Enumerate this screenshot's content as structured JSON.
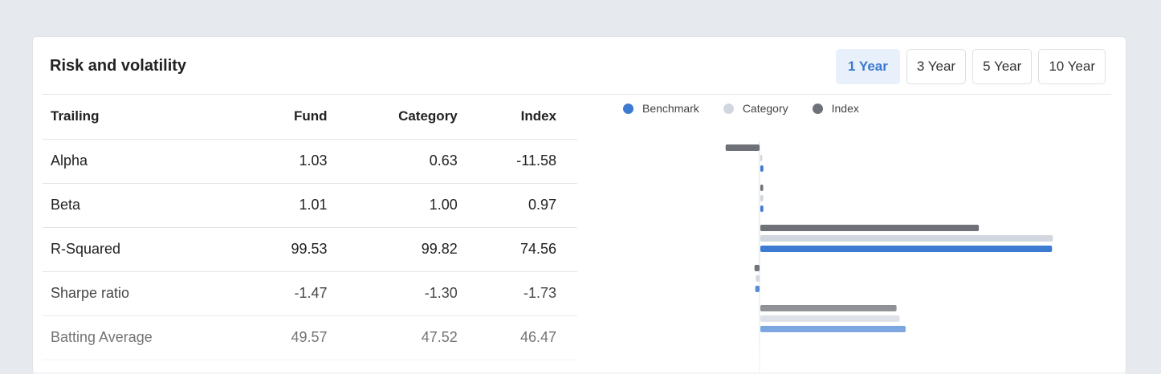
{
  "title": "Risk and volatility",
  "periods": [
    {
      "label": "1 Year",
      "active": true
    },
    {
      "label": "3 Year",
      "active": false
    },
    {
      "label": "5 Year",
      "active": false
    },
    {
      "label": "10 Year",
      "active": false
    }
  ],
  "table": {
    "headers": [
      "Trailing",
      "Fund",
      "Category",
      "Index"
    ],
    "rows": [
      [
        "Alpha",
        "1.03",
        "0.63",
        "-11.58"
      ],
      [
        "Beta",
        "1.01",
        "1.00",
        "0.97"
      ],
      [
        "R-Squared",
        "99.53",
        "99.82",
        "74.56"
      ],
      [
        "Sharpe ratio",
        "-1.47",
        "-1.30",
        "-1.73"
      ],
      [
        "Batting Average",
        "49.57",
        "47.52",
        "46.47"
      ]
    ]
  },
  "chart_data": {
    "type": "bar",
    "orientation": "horizontal",
    "categories": [
      "Alpha",
      "Beta",
      "R-Squared",
      "Sharpe ratio",
      "Batting Average"
    ],
    "legend_position": "top-left",
    "series": [
      {
        "name": "Index",
        "color": "#6e7178",
        "values": [
          -11.58,
          0.97,
          74.56,
          -1.73,
          46.47
        ]
      },
      {
        "name": "Category",
        "color": "#d1d6df",
        "values": [
          0.63,
          1.0,
          99.82,
          -1.3,
          47.52
        ]
      },
      {
        "name": "Benchmark",
        "color": "#3d7bd2",
        "values": [
          1.03,
          1.01,
          99.53,
          -1.47,
          49.57
        ]
      }
    ],
    "legend": [
      "Benchmark",
      "Category",
      "Index"
    ]
  }
}
